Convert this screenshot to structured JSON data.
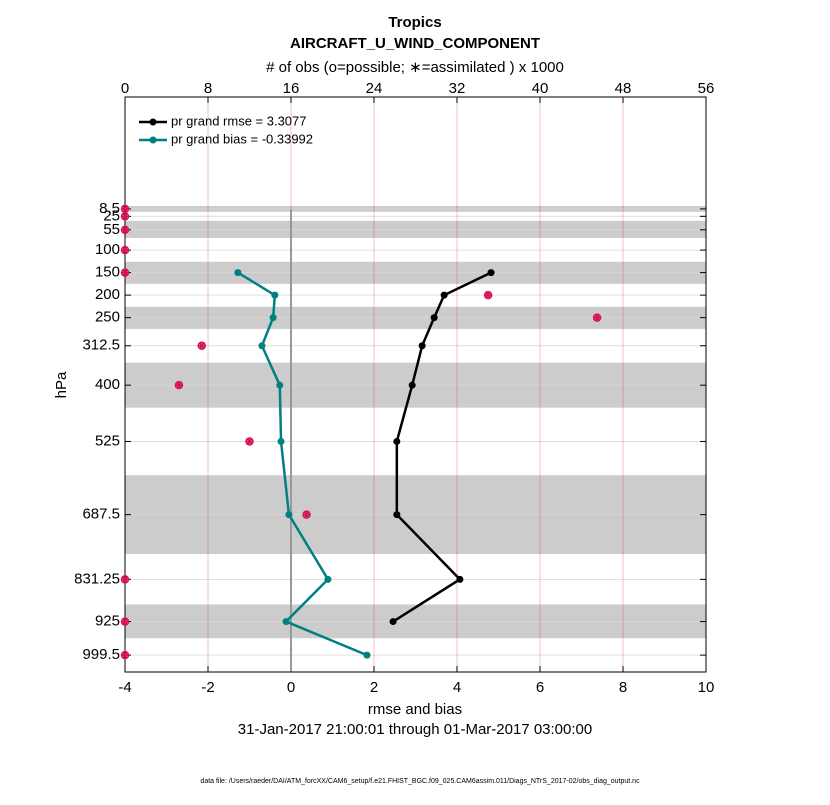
{
  "chart_data": {
    "type": "profile",
    "title": "Tropics",
    "subtitle": "AIRCRAFT_U_WIND_COMPONENT",
    "x2_label": "# of obs (o=possible; ∗=assimilated ) x 1000",
    "x_label": "rmse and bias",
    "date_range": "31-Jan-2017 21:00:01 through 01-Mar-2017 03:00:00",
    "y_label": "hPa",
    "footnote": "data file: /Users/raeder/DAI/ATM_forcXX/CAM6_setup/f.e21.FHIST_BGC.f09_025.CAM6assim.011/Diags_NTrS_2017-02/obs_diag_output.nc",
    "levels": [
      8.5,
      25,
      55,
      100,
      150,
      200,
      250,
      312.5,
      400,
      525,
      687.5,
      831.25,
      925,
      999.5
    ],
    "series": [
      {
        "name": "pr grand rmse = 3.3077",
        "color": "#000000",
        "values": [
          null,
          null,
          null,
          null,
          4.82,
          3.69,
          3.45,
          3.16,
          2.92,
          2.55,
          2.55,
          4.07,
          2.46,
          null
        ]
      },
      {
        "name": "pr grand bias = -0.33992",
        "color": "#008080",
        "values": [
          null,
          null,
          null,
          null,
          -1.28,
          -0.39,
          -0.43,
          -0.7,
          -0.27,
          -0.24,
          -0.05,
          0.89,
          -0.12,
          1.83
        ]
      }
    ],
    "obs_color": "#d6135a",
    "obs_possible": [
      0,
      0,
      0,
      0,
      0,
      35.0,
      45.5,
      7.4,
      5.2,
      12.0,
      17.5,
      0,
      0,
      0
    ],
    "obs_assimilated": [
      0,
      0,
      0,
      0,
      0,
      35.0,
      45.5,
      7.4,
      5.2,
      12.0,
      17.5,
      0,
      0,
      0
    ],
    "shaded_layers": [
      [
        2,
        15
      ],
      [
        35,
        73
      ],
      [
        126,
        175
      ],
      [
        226,
        275
      ],
      [
        350,
        450
      ],
      [
        600,
        775
      ],
      [
        887,
        962
      ]
    ],
    "xlim": [
      -4,
      10
    ],
    "xticks": [
      -4,
      -2,
      0,
      2,
      4,
      6,
      8,
      10
    ],
    "x2lim": [
      0,
      56
    ],
    "x2ticks": [
      0,
      8,
      16,
      24,
      32,
      40,
      48,
      56
    ],
    "ylim": [
      1037,
      -240
    ],
    "yticks": [
      8.5,
      25,
      55,
      100,
      150,
      200,
      250,
      312.5,
      400,
      525,
      687.5,
      831.25,
      925,
      999.5
    ],
    "grid": true
  }
}
